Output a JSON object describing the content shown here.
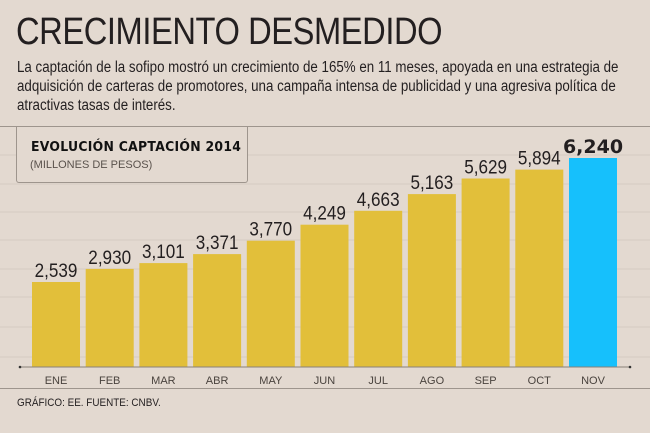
{
  "header": {
    "title": "CRECIMIENTO DESMEDIDO",
    "subtitle": "La captación de la sofipo mostró un crecimiento de 165% en 11 meses, apoyada en una estrategia de adquisición de carteras de promotores, una campaña intensa de publicidad y una agresiva política de atractivas tasas de interés."
  },
  "legend": {
    "title": "EVOLUCIÓN CAPTACIÓN 2014",
    "subtitle": "(MILLONES DE PESOS)"
  },
  "footer": {
    "source": "GRÁFICO: EE. FUENTE: CNBV."
  },
  "colors": {
    "background": "#e3d9d0",
    "bar": "#e2bf3a",
    "highlight_bar": "#16c0fc",
    "gridline": "#d5cbc2",
    "axis": "#8a8179",
    "text": "#231f20"
  },
  "chart_data": {
    "type": "bar",
    "title": "EVOLUCIÓN CAPTACIÓN 2014",
    "subtitle": "(MILLONES DE PESOS)",
    "xlabel": "",
    "ylabel": "Millones de pesos",
    "categories": [
      "ENE",
      "FEB",
      "MAR",
      "ABR",
      "MAY",
      "JUN",
      "JUL",
      "AGO",
      "SEP",
      "OCT",
      "NOV"
    ],
    "values": [
      2539,
      2930,
      3101,
      3371,
      3770,
      4249,
      4663,
      5163,
      5629,
      5894,
      6240
    ],
    "value_labels": [
      "2,539",
      "2,930",
      "3,101",
      "3,371",
      "3,770",
      "4,249",
      "4,663",
      "5,163",
      "5,629",
      "5,894",
      "6,240"
    ],
    "highlight_index": 10,
    "ylim": [
      0,
      6240
    ],
    "grid": true,
    "y_axis_shown": false,
    "legend": "top-left"
  }
}
